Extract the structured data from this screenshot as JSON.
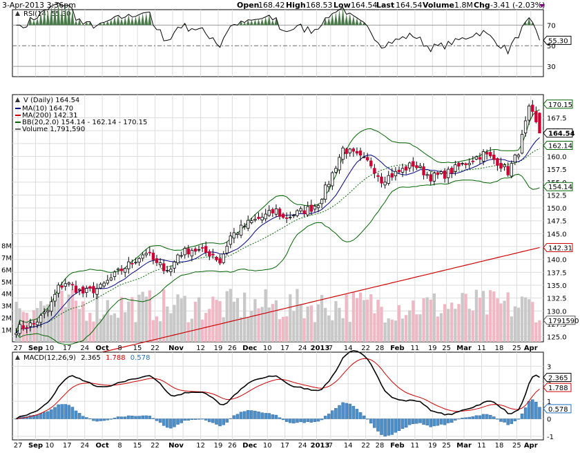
{
  "header": {
    "datetime": "3-Apr-2013 3:36pm",
    "open_label": "Open",
    "open": "168.42",
    "high_label": "High",
    "high": "168.53",
    "low_label": "Low",
    "low": "164.54",
    "last_label": "Last",
    "last": "164.54",
    "volume_label": "Volume",
    "volume": "1.8M",
    "chg_label": "Chg",
    "chg": "-3.41 (-2.03%)"
  },
  "rsi": {
    "label": "RSI(14) 55.30",
    "current_tag": "55.30",
    "ticks": [
      "70",
      "50",
      "30"
    ]
  },
  "price": {
    "title": "V (Daily) 164.54",
    "legend": [
      {
        "text": "MA(10) 164.70",
        "color": "#000080"
      },
      {
        "text": "MA(200) 142.31",
        "color": "#cc0000"
      },
      {
        "text": "BB(20,2.0) 154.14 - 162.14 - 170.15",
        "color": "#006400"
      },
      {
        "text": "Volume 1,791,590",
        "color": "#666666"
      }
    ],
    "tags": [
      {
        "text": "170.15",
        "value": 170.15,
        "color": "#006400"
      },
      {
        "text": "164.54",
        "value": 164.54,
        "color": "#000000",
        "bold": true
      },
      {
        "text": "162.14",
        "value": 162.14,
        "color": "#006400"
      },
      {
        "text": "154.14",
        "value": 154.14,
        "color": "#006400"
      },
      {
        "text": "142.31",
        "value": 142.31,
        "color": "#cc0000"
      }
    ],
    "volume_tag": "1791590",
    "y_ticks": [
      "167.5",
      "165.0",
      "162.5",
      "160.0",
      "157.5",
      "155.0",
      "152.5",
      "150.0",
      "147.5",
      "145.0",
      "142.5",
      "140.0",
      "137.5",
      "135.0",
      "132.5",
      "130.0",
      "127.5",
      "125.0"
    ],
    "vol_ticks": [
      "8M",
      "7M",
      "6M",
      "5M",
      "4M",
      "3M",
      "2M",
      "1M"
    ]
  },
  "macd": {
    "label_prefix": "MACD(12,26,9)",
    "macd_value": "2.365",
    "signal_value": "1.788",
    "hist_value": "0.578",
    "ticks": [
      "3",
      "2",
      "1",
      "0",
      "-1"
    ]
  },
  "x_axis": {
    "labels": [
      "27",
      "Sep",
      "10",
      "17",
      "24",
      "Oct",
      "8",
      "15",
      "22",
      "Nov",
      "12",
      "19",
      "26",
      "Dec",
      "10",
      "17",
      "24",
      "2013",
      "7",
      "14",
      "22",
      "28",
      "Feb",
      "11",
      "19",
      "25",
      "Mar",
      "11",
      "18",
      "25",
      "Apr"
    ],
    "bold": [
      "Sep",
      "Oct",
      "Nov",
      "Dec",
      "2013",
      "Feb",
      "Mar",
      "Apr"
    ]
  },
  "chart_data": {
    "type": "candlestick",
    "symbol": "V",
    "period": "Daily",
    "x_range": [
      "2012-08-24",
      "2013-04-03"
    ],
    "ylim": [
      124,
      172
    ],
    "rsi_ylim": [
      20,
      85
    ],
    "macd_ylim": [
      -1.2,
      3.8
    ],
    "volume_ylim_millions": [
      0,
      8.6
    ],
    "anchors": [
      [
        "2012-08-24",
        126.5
      ],
      [
        "2012-08-31",
        127.5
      ],
      [
        "2012-09-07",
        130
      ],
      [
        "2012-09-12",
        134.5
      ],
      [
        "2012-09-14",
        135.5
      ],
      [
        "2012-09-21",
        133.5
      ],
      [
        "2012-09-28",
        134.5
      ],
      [
        "2012-10-05",
        137.5
      ],
      [
        "2012-10-10",
        139
      ],
      [
        "2012-10-17",
        141.5
      ],
      [
        "2012-10-22",
        139
      ],
      [
        "2012-10-26",
        138
      ],
      [
        "2012-11-01",
        141
      ],
      [
        "2012-11-07",
        142
      ],
      [
        "2012-11-15",
        141
      ],
      [
        "2012-11-19",
        139.5
      ],
      [
        "2012-11-23",
        144.5
      ],
      [
        "2012-11-30",
        147
      ],
      [
        "2012-12-07",
        148.5
      ],
      [
        "2012-12-12",
        149.5
      ],
      [
        "2012-12-14",
        148
      ],
      [
        "2012-12-20",
        149
      ],
      [
        "2012-12-27",
        150
      ],
      [
        "2012-12-31",
        151
      ],
      [
        "2013-01-04",
        155
      ],
      [
        "2013-01-10",
        161.5
      ],
      [
        "2013-01-16",
        160
      ],
      [
        "2013-01-23",
        158.5
      ],
      [
        "2013-01-28",
        155.5
      ],
      [
        "2013-02-04",
        157
      ],
      [
        "2013-02-08",
        158.5
      ],
      [
        "2013-02-15",
        156
      ],
      [
        "2013-02-22",
        156.5
      ],
      [
        "2013-02-28",
        158
      ],
      [
        "2013-03-06",
        159.5
      ],
      [
        "2013-03-11",
        160.5
      ],
      [
        "2013-03-15",
        159
      ],
      [
        "2013-03-20",
        157
      ],
      [
        "2013-03-25",
        161
      ],
      [
        "2013-03-28",
        169
      ],
      [
        "2013-04-01",
        168
      ],
      [
        "2013-04-03",
        164.54
      ]
    ],
    "ma200": [
      [
        "2012-08-24",
        118
      ],
      [
        "2013-04-03",
        142.31
      ]
    ],
    "last": {
      "date": "2013-04-03",
      "open": 168.42,
      "high": 168.53,
      "low": 164.54,
      "close": 164.54,
      "volume": 1791590
    },
    "bb_last": {
      "lower": 154.14,
      "middle": 162.14,
      "upper": 170.15
    },
    "ma10_last": 164.7,
    "rsi_last": 55.3,
    "macd_last": {
      "macd": 2.365,
      "signal": 1.788,
      "hist": 0.578
    }
  }
}
